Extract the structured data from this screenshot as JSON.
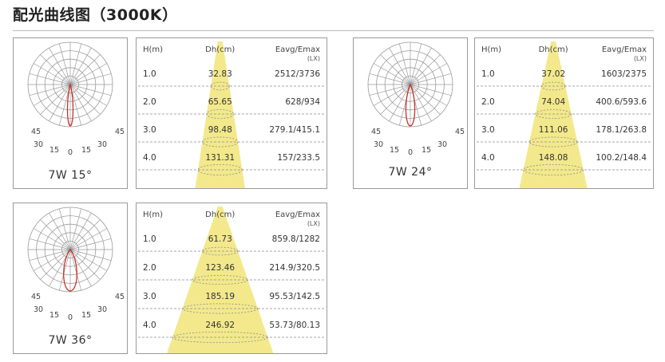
{
  "title": "配光曲线图（3000K）",
  "colors": {
    "beam_fill": "#f3e98c",
    "curve_stroke": "#c8312b",
    "grid_stroke": "#9a9a9a",
    "border": "#9a9a9a",
    "dash": "#8a8a8a"
  },
  "polar_angle_labels": [
    "45",
    "30",
    "15",
    "0",
    "15",
    "30",
    "45"
  ],
  "table_headers": {
    "h": "H(m)",
    "dh": "Dh(cm)",
    "e": "Eavg/Emax",
    "unit": "(LX)"
  },
  "panels": [
    {
      "id": "p15",
      "caption": "7W 15°",
      "beam_angle": 15,
      "rows": [
        {
          "h": "1.0",
          "dh": "32.83",
          "e": "2512/3736"
        },
        {
          "h": "2.0",
          "dh": "65.65",
          "e": "628/934"
        },
        {
          "h": "3.0",
          "dh": "98.48",
          "e": "279.1/415.1"
        },
        {
          "h": "4.0",
          "dh": "131.31",
          "e": "157/233.5"
        }
      ]
    },
    {
      "id": "p24",
      "caption": "7W 24°",
      "beam_angle": 24,
      "rows": [
        {
          "h": "1.0",
          "dh": "37.02",
          "e": "1603/2375"
        },
        {
          "h": "2.0",
          "dh": "74.04",
          "e": "400.6/593.6"
        },
        {
          "h": "3.0",
          "dh": "111.06",
          "e": "178.1/263.8"
        },
        {
          "h": "4.0",
          "dh": "148.08",
          "e": "100.2/148.4"
        }
      ]
    },
    {
      "id": "p36",
      "caption": "7W 36°",
      "beam_angle": 36,
      "rows": [
        {
          "h": "1.0",
          "dh": "61.73",
          "e": "859.8/1282"
        },
        {
          "h": "2.0",
          "dh": "123.46",
          "e": "214.9/320.5"
        },
        {
          "h": "3.0",
          "dh": "185.19",
          "e": "95.53/142.5"
        },
        {
          "h": "4.0",
          "dh": "246.92",
          "e": "53.73/80.13"
        }
      ]
    }
  ]
}
